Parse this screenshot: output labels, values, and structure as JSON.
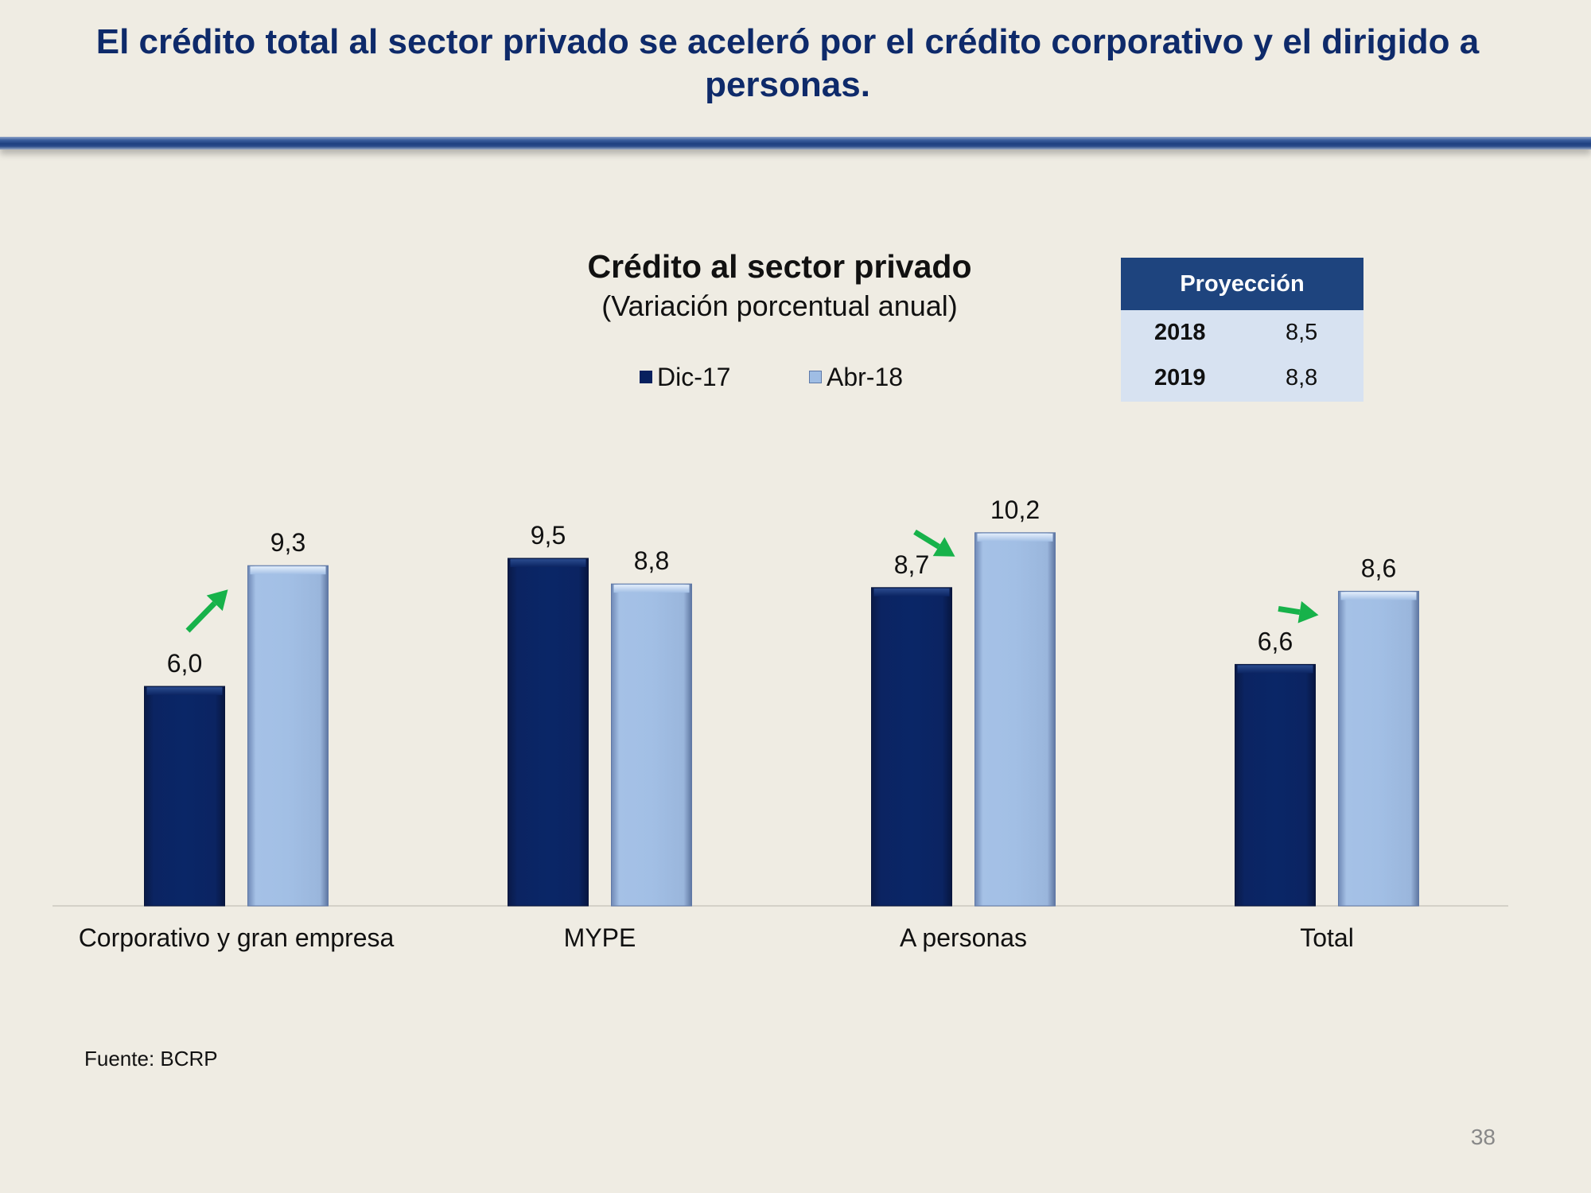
{
  "slide": {
    "title": "El crédito total al sector privado se aceleró por el crédito corporativo y el dirigido a personas.",
    "source": "Fuente: BCRP",
    "page_number": "38"
  },
  "projection": {
    "header": "Proyección",
    "rows": [
      {
        "year": "2018",
        "value": "8,5"
      },
      {
        "year": "2019",
        "value": "8,8"
      }
    ]
  },
  "colors": {
    "dark_series": "#08205e",
    "light_series": "#9fbde4",
    "arrow": "#17b24a",
    "title": "#0e2a6a"
  },
  "chart_data": {
    "type": "bar",
    "title": "Crédito al sector privado",
    "subtitle": "(Variación porcentual anual)",
    "xlabel": "",
    "ylabel": "",
    "ylim": [
      0,
      12
    ],
    "categories": [
      "Corporativo y gran empresa",
      "MYPE",
      "A personas",
      "Total"
    ],
    "series": [
      {
        "name": "Dic-17",
        "values": [
          6.0,
          9.5,
          8.7,
          6.6
        ],
        "labels": [
          "6,0",
          "9,5",
          "8,7",
          "6,6"
        ]
      },
      {
        "name": "Abr-18",
        "values": [
          9.3,
          8.8,
          10.2,
          8.6
        ],
        "labels": [
          "9,3",
          "8,8",
          "10,2",
          "8,6"
        ]
      }
    ],
    "annotations": [
      {
        "type": "arrow-up",
        "category": "Corporativo y gran empresa"
      },
      {
        "type": "arrow-up",
        "category": "A personas"
      },
      {
        "type": "arrow-up",
        "category": "Total"
      }
    ],
    "legend": "top-center",
    "grid": false
  }
}
